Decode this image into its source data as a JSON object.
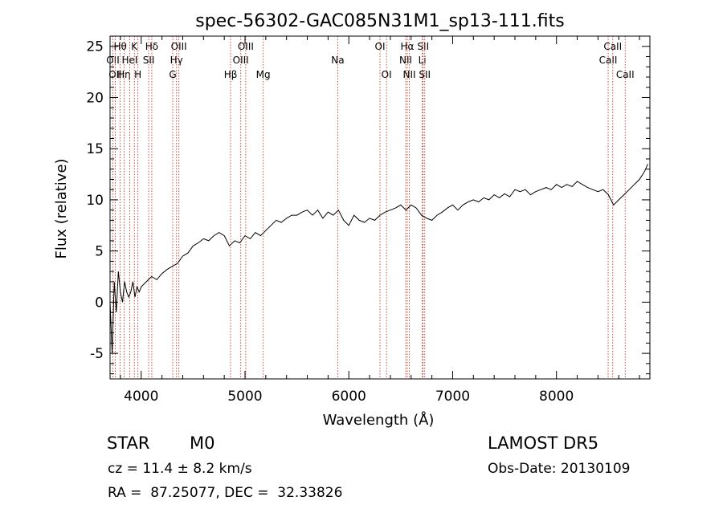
{
  "chart_data": {
    "type": "line",
    "title": "spec-56302-GAC085N31M1_sp13-111.fits",
    "xlabel": "Wavelength (Å)",
    "ylabel": "Flux (relative)",
    "xlim": [
      3700,
      8900
    ],
    "ylim": [
      -7.5,
      26
    ],
    "xticks": [
      4000,
      5000,
      6000,
      7000,
      8000
    ],
    "yticks": [
      -5,
      0,
      5,
      10,
      15,
      20,
      25
    ],
    "series": [
      {
        "x": [
          3700,
          3720,
          3740,
          3760,
          3780,
          3800,
          3820,
          3840,
          3860,
          3880,
          3900,
          3920,
          3940,
          3960,
          3980,
          4000,
          4050,
          4100,
          4150,
          4200,
          4250,
          4300,
          4350,
          4400,
          4450,
          4500,
          4550,
          4600,
          4650,
          4700,
          4750,
          4800,
          4850,
          4900,
          4950,
          5000,
          5050,
          5100,
          5150,
          5200,
          5250,
          5300,
          5350,
          5400,
          5450,
          5500,
          5550,
          5600,
          5650,
          5700,
          5750,
          5800,
          5850,
          5900,
          5950,
          6000,
          6050,
          6100,
          6150,
          6200,
          6250,
          6300,
          6350,
          6400,
          6450,
          6500,
          6550,
          6600,
          6650,
          6700,
          6750,
          6800,
          6850,
          6900,
          6950,
          7000,
          7050,
          7100,
          7150,
          7200,
          7250,
          7300,
          7350,
          7400,
          7450,
          7500,
          7550,
          7600,
          7650,
          7700,
          7750,
          7800,
          7850,
          7900,
          7950,
          8000,
          8050,
          8100,
          8150,
          8200,
          8250,
          8300,
          8350,
          8400,
          8450,
          8500,
          8550,
          8600,
          8650,
          8700,
          8750,
          8800,
          8850,
          8880
        ],
        "values": [
          0,
          -5,
          2,
          -1,
          3,
          1,
          0,
          2,
          1,
          0.5,
          1,
          2,
          0.5,
          1.5,
          1,
          1.5,
          2,
          2.5,
          2.2,
          2.8,
          3.2,
          3.5,
          3.8,
          4.5,
          4.8,
          5.5,
          5.8,
          6.2,
          6,
          6.5,
          6.8,
          6.5,
          5.5,
          6,
          5.8,
          6.5,
          6.2,
          6.8,
          6.5,
          7,
          7.5,
          8,
          7.8,
          8.2,
          8.5,
          8.5,
          8.8,
          9,
          8.5,
          9,
          8.2,
          8.8,
          8.5,
          9,
          8,
          7.5,
          8.5,
          8,
          7.8,
          8.2,
          8,
          8.5,
          8.8,
          9,
          9.2,
          9.5,
          9,
          9.5,
          9.2,
          8.5,
          8.2,
          8,
          8.5,
          8.8,
          9.2,
          9.5,
          9,
          9.5,
          9.8,
          10,
          9.8,
          10.2,
          10,
          10.5,
          10.2,
          10.6,
          10.3,
          11,
          10.8,
          11,
          10.5,
          10.8,
          11,
          11.2,
          11,
          11.5,
          11.2,
          11.5,
          11.3,
          11.8,
          11.5,
          11.2,
          11,
          10.8,
          11,
          10.5,
          9.5,
          10,
          10.5,
          11,
          11.5,
          12,
          12.8,
          13.5
        ],
        "color": "#000000"
      }
    ],
    "lines_of_interest": [
      {
        "wavelength": 3727,
        "label": "OII",
        "row": 1
      },
      {
        "wavelength": 3750,
        "label": "OII",
        "row": 2
      },
      {
        "wavelength": 3798,
        "label": "Hθ",
        "row": 0
      },
      {
        "wavelength": 3835,
        "label": "Hη",
        "row": 2
      },
      {
        "wavelength": 3889,
        "label": "HeI",
        "row": 1
      },
      {
        "wavelength": 3934,
        "label": "K",
        "row": 0
      },
      {
        "wavelength": 3968,
        "label": "H",
        "row": 2
      },
      {
        "wavelength": 4072,
        "label": "SII",
        "row": 1
      },
      {
        "wavelength": 4102,
        "label": "Hδ",
        "row": 0
      },
      {
        "wavelength": 4304,
        "label": "G",
        "row": 2
      },
      {
        "wavelength": 4340,
        "label": "Hγ",
        "row": 1
      },
      {
        "wavelength": 4363,
        "label": "OIII",
        "row": 0
      },
      {
        "wavelength": 4861,
        "label": "Hβ",
        "row": 2
      },
      {
        "wavelength": 4959,
        "label": "OIII",
        "row": 1
      },
      {
        "wavelength": 5007,
        "label": "OIII",
        "row": 0
      },
      {
        "wavelength": 5175,
        "label": "Mg",
        "row": 2
      },
      {
        "wavelength": 5893,
        "label": "Na",
        "row": 1
      },
      {
        "wavelength": 6300,
        "label": "OI",
        "row": 0
      },
      {
        "wavelength": 6363,
        "label": "OI",
        "row": 2
      },
      {
        "wavelength": 6548,
        "label": "NII",
        "row": 1
      },
      {
        "wavelength": 6563,
        "label": "Hα",
        "row": 0
      },
      {
        "wavelength": 6583,
        "label": "NII",
        "row": 2
      },
      {
        "wavelength": 6707,
        "label": "Li",
        "row": 1
      },
      {
        "wavelength": 6716,
        "label": "SII",
        "row": 0
      },
      {
        "wavelength": 6731,
        "label": "SII",
        "row": 2
      },
      {
        "wavelength": 8498,
        "label": "CaII",
        "row": 1
      },
      {
        "wavelength": 8542,
        "label": "CaII",
        "row": 0
      },
      {
        "wavelength": 8662,
        "label": "CaII",
        "row": 2
      }
    ]
  },
  "info": {
    "class_label": "STAR",
    "subclass": "M0",
    "survey": "LAMOST DR5",
    "redshift": "cz = 11.4 ± 8.2 km/s",
    "obs_date": "Obs-Date: 20130109",
    "coords": "RA =  87.25077, DEC =  32.33826"
  }
}
